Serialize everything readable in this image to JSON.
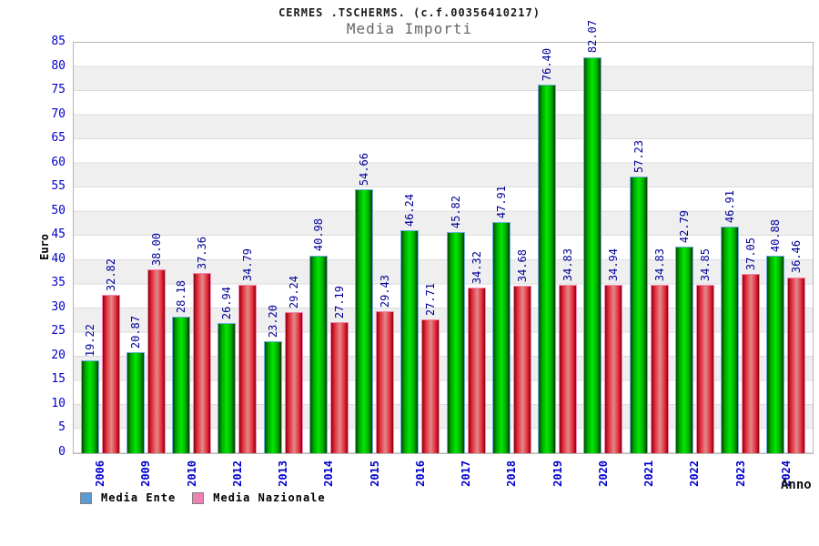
{
  "title": "CERMES .TSCHERMS. (c.f.00356410217)",
  "subtitle": "Media Importi",
  "axes": {
    "y_label": "Euro",
    "x_label": "Anno"
  },
  "legend": [
    {
      "label": "Media Ente",
      "swatch_color": "#5b9bd5"
    },
    {
      "label": "Media Nazionale",
      "swatch_color": "#ee82b0"
    }
  ],
  "colors": {
    "bar_ente_center": "#00e800",
    "bar_ente_edge": "#004d00",
    "bar_ente_border": "#74aede",
    "bar_nazionale_center": "#e08a8a",
    "bar_nazionale_edge": "#8e0010",
    "bar_nazionale_border": "#f287ae",
    "axis_text": "#0000cc",
    "value_text": "#000099",
    "band_gray": "#efefef",
    "plot_border": "#b5b5b5"
  },
  "chart_data": {
    "type": "bar",
    "title": "CERMES .TSCHERMS. (c.f.00356410217)",
    "subtitle": "Media Importi",
    "xlabel": "Anno",
    "ylabel": "Euro",
    "ylim": [
      0,
      85
    ],
    "yticks": [
      0,
      5,
      10,
      15,
      20,
      25,
      30,
      35,
      40,
      45,
      50,
      55,
      60,
      65,
      70,
      75,
      80,
      85
    ],
    "grid": "horizontal-bands",
    "legend_position": "bottom-left",
    "categories": [
      "2006",
      "2009",
      "2010",
      "2012",
      "2013",
      "2014",
      "2015",
      "2016",
      "2017",
      "2018",
      "2019",
      "2020",
      "2021",
      "2022",
      "2023",
      "2024"
    ],
    "series": [
      {
        "name": "Media Ente",
        "values": [
          19.22,
          20.87,
          28.18,
          26.94,
          23.2,
          40.98,
          54.66,
          46.24,
          45.82,
          47.91,
          76.4,
          82.07,
          57.23,
          42.79,
          46.91,
          40.88
        ]
      },
      {
        "name": "Media Nazionale",
        "values": [
          32.82,
          38.0,
          37.36,
          34.79,
          29.24,
          27.19,
          29.43,
          27.71,
          34.32,
          34.68,
          34.83,
          34.94,
          34.83,
          34.85,
          37.05,
          36.46
        ]
      }
    ]
  }
}
